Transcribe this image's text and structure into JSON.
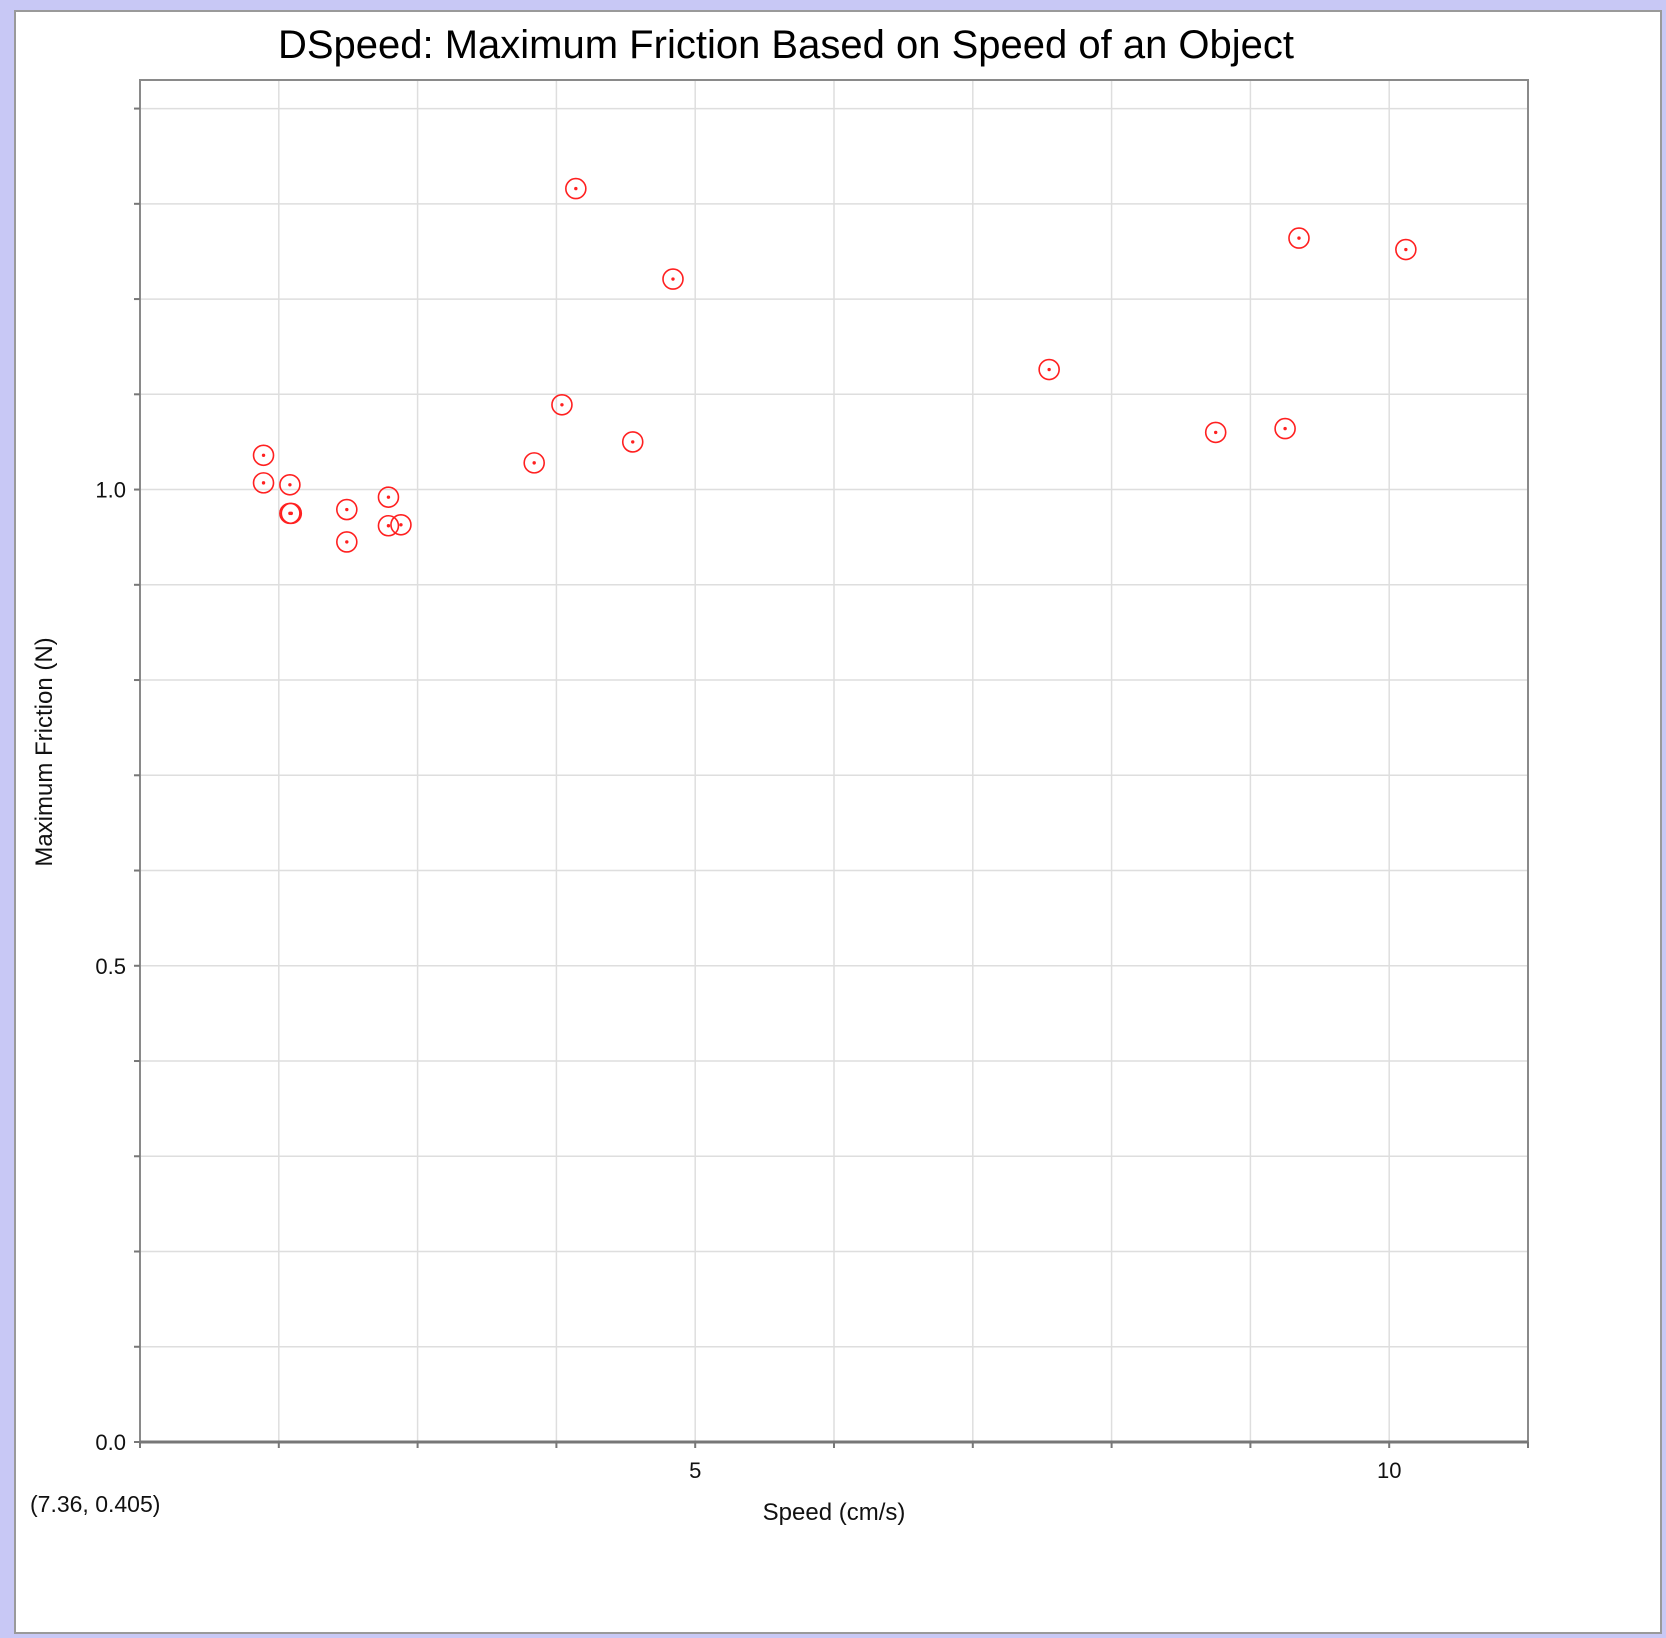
{
  "cursor_readout": "(7.36, 0.405)",
  "chart_data": {
    "type": "scatter",
    "title": "DSpeed: Maximum Friction Based on Speed of an Object",
    "xlabel": "Speed (cm/s)",
    "ylabel": "Maximum Friction (N)",
    "xlim": [
      1.0,
      11.0
    ],
    "ylim": [
      0.0,
      1.43
    ],
    "x_ticks": [
      5,
      10
    ],
    "x_tick_labels": [
      "5",
      "10"
    ],
    "x_minor_ticks": [
      1,
      2,
      3,
      4,
      5,
      6,
      7,
      8,
      9,
      10,
      11
    ],
    "y_ticks": [
      0.0,
      0.5,
      1.0
    ],
    "y_tick_labels": [
      "0.0",
      "0.5",
      "1.0"
    ],
    "y_minor_ticks": [
      0.0,
      0.1,
      0.2,
      0.3,
      0.4,
      0.5,
      0.6,
      0.7,
      0.8,
      0.9,
      1.0,
      1.1,
      1.2,
      1.3,
      1.4
    ],
    "grid": true,
    "marker_color": "#ff2020",
    "series": [
      {
        "x": [
          1.89,
          1.89,
          2.08,
          2.08,
          2.09,
          2.49,
          2.49,
          2.79,
          2.79,
          2.88,
          3.84,
          4.04,
          4.14,
          4.55,
          4.84,
          7.55,
          8.75,
          9.25,
          9.35,
          10.12
        ],
        "y": [
          1.036,
          1.007,
          1.005,
          0.975,
          0.975,
          0.979,
          0.945,
          0.992,
          0.962,
          0.963,
          1.028,
          1.089,
          1.316,
          1.05,
          1.221,
          1.126,
          1.06,
          1.064,
          1.264,
          1.252
        ]
      }
    ]
  }
}
